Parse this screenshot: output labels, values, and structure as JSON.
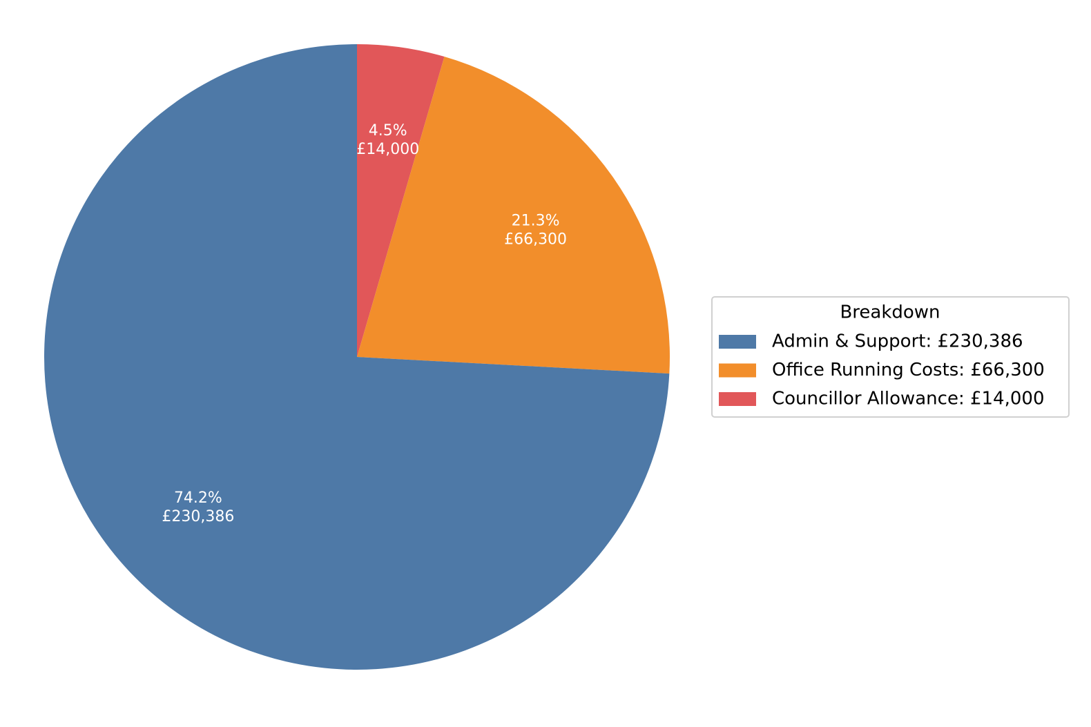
{
  "chart_data": {
    "type": "pie",
    "categories": [
      "Admin & Support",
      "Office Running Costs",
      "Councillor Allowance"
    ],
    "values": [
      230386,
      66300,
      14000
    ],
    "value_labels": [
      "£230,386",
      "£66,300",
      "£14,000"
    ],
    "percent_labels": [
      "74.2%",
      "21.3%",
      "4.5%"
    ],
    "colors": [
      "#4e79a7",
      "#f28e2b",
      "#e15759"
    ],
    "legend_title": "Breakdown",
    "legend_labels": [
      "Admin & Support: £230,386",
      "Office Running Costs: £66,300",
      "Councillor Allowance: £14,000"
    ],
    "legend_position": "right"
  }
}
